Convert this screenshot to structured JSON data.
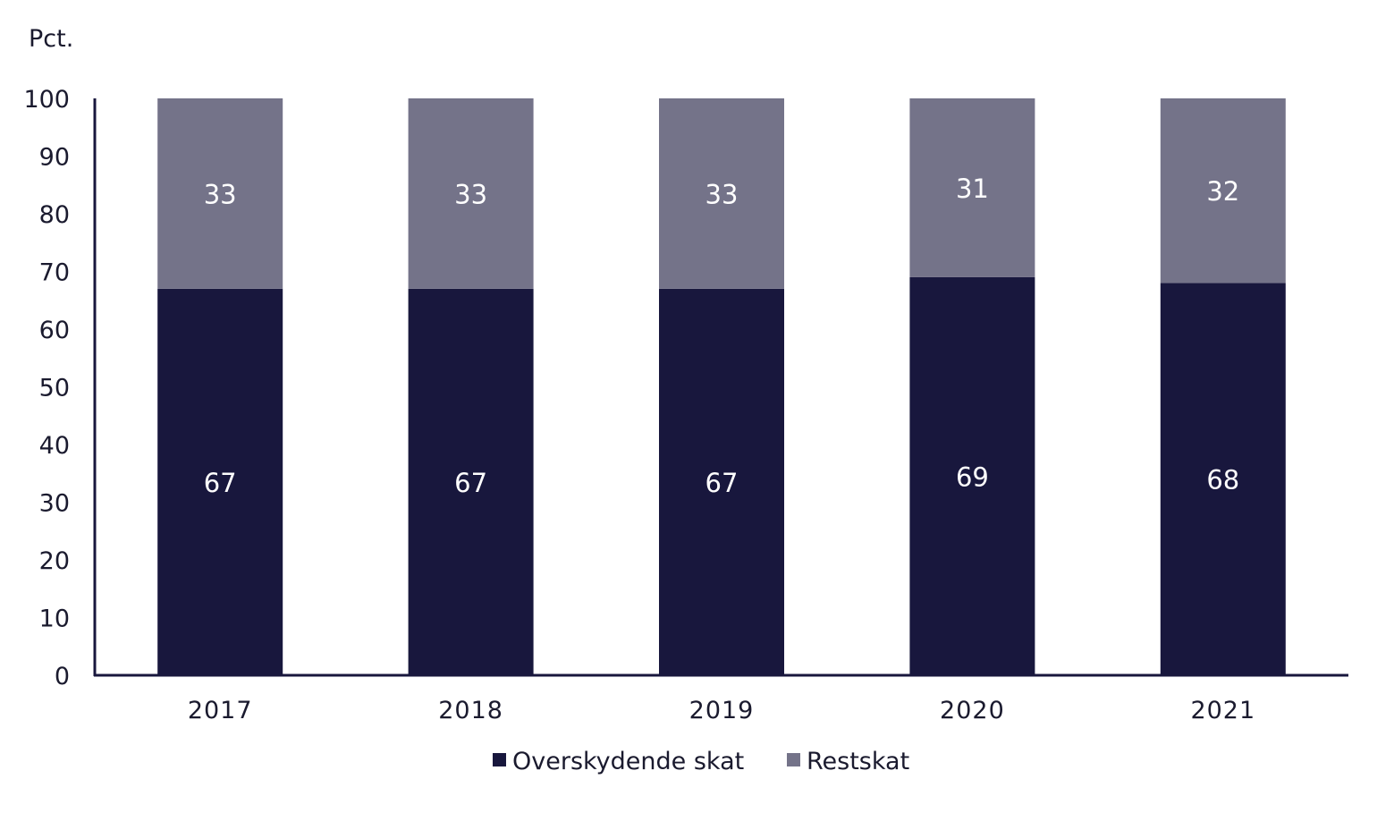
{
  "chart_data": {
    "type": "bar",
    "stacked": true,
    "unit_label": "Pct.",
    "categories": [
      "2017",
      "2018",
      "2019",
      "2020",
      "2021"
    ],
    "series": [
      {
        "name": "Overskydende skat",
        "values": [
          67,
          67,
          67,
          69,
          68
        ],
        "color": "#18173d"
      },
      {
        "name": "Restskat",
        "values": [
          33,
          33,
          33,
          31,
          32
        ],
        "color": "#747389"
      }
    ],
    "ylim": [
      0,
      100
    ],
    "yticks": [
      0,
      10,
      20,
      30,
      40,
      50,
      60,
      70,
      80,
      90,
      100
    ],
    "grid": false,
    "legend_position": "bottom-center",
    "axis_color": "#18173d",
    "label_color": "#ffffff"
  }
}
